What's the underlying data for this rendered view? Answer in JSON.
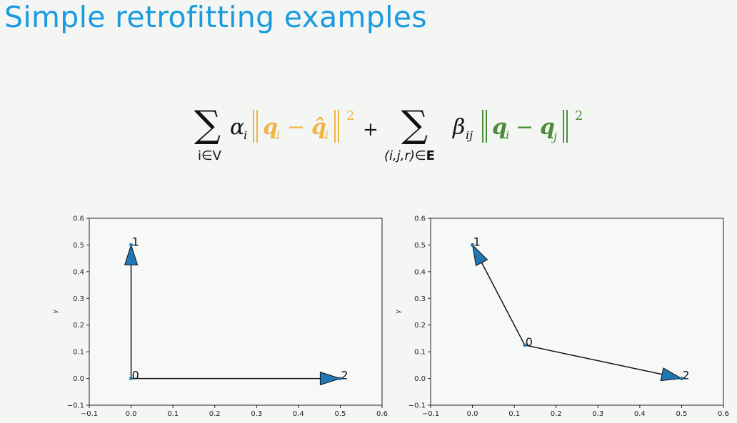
{
  "slide": {
    "title": "Simple retrofitting examples"
  },
  "equation": {
    "sum1_sub": "i∈V",
    "alpha": "α",
    "alpha_sub": "i",
    "q": "q",
    "q_sub": "i",
    "minus": "−",
    "qhat": "q̂",
    "qhat_sub": "i",
    "sq": "2",
    "plus": "+",
    "sum2_sub_a": "(i,j,r)∈",
    "sum2_sub_b": "E",
    "beta": "β",
    "beta_sub": "ij",
    "q2_sub": "i",
    "qj_sub": "j",
    "colors": {
      "orange": "#f2b445",
      "green": "#4a8c3c"
    }
  },
  "chart_data": [
    {
      "type": "scatter",
      "title": "",
      "xlabel": "",
      "ylabel": "y",
      "xlim": [
        -0.1,
        0.6
      ],
      "ylim": [
        -0.1,
        0.6
      ],
      "xticks": [
        -0.1,
        0.0,
        0.1,
        0.2,
        0.3,
        0.4,
        0.5,
        0.6
      ],
      "yticks": [
        -0.1,
        0.0,
        0.1,
        0.2,
        0.3,
        0.4,
        0.5,
        0.6
      ],
      "tick_labels": [
        "−0.1",
        "0.0",
        "0.1",
        "0.2",
        "0.3",
        "0.4",
        "0.5",
        "0.6"
      ],
      "nodes": [
        {
          "label": "0",
          "x": 0.0,
          "y": 0.0
        },
        {
          "label": "1",
          "x": 0.0,
          "y": 0.5
        },
        {
          "label": "2",
          "x": 0.5,
          "y": 0.0
        }
      ],
      "edges": [
        {
          "from": 0,
          "to": 1
        },
        {
          "from": 0,
          "to": 2
        }
      ],
      "arrow_color": "#1f77b4",
      "grid": false
    },
    {
      "type": "scatter",
      "title": "",
      "xlabel": "",
      "ylabel": "y",
      "xlim": [
        -0.1,
        0.6
      ],
      "ylim": [
        -0.1,
        0.6
      ],
      "xticks": [
        -0.1,
        0.0,
        0.1,
        0.2,
        0.3,
        0.4,
        0.5,
        0.6
      ],
      "yticks": [
        -0.1,
        0.0,
        0.1,
        0.2,
        0.3,
        0.4,
        0.5,
        0.6
      ],
      "tick_labels": [
        "−0.1",
        "0.0",
        "0.1",
        "0.2",
        "0.3",
        "0.4",
        "0.5",
        "0.6"
      ],
      "nodes": [
        {
          "label": "0",
          "x": 0.125,
          "y": 0.125
        },
        {
          "label": "1",
          "x": 0.0,
          "y": 0.5
        },
        {
          "label": "2",
          "x": 0.5,
          "y": 0.0
        }
      ],
      "edges": [
        {
          "from": 0,
          "to": 1
        },
        {
          "from": 0,
          "to": 2
        }
      ],
      "arrow_color": "#1f77b4",
      "grid": false
    }
  ]
}
